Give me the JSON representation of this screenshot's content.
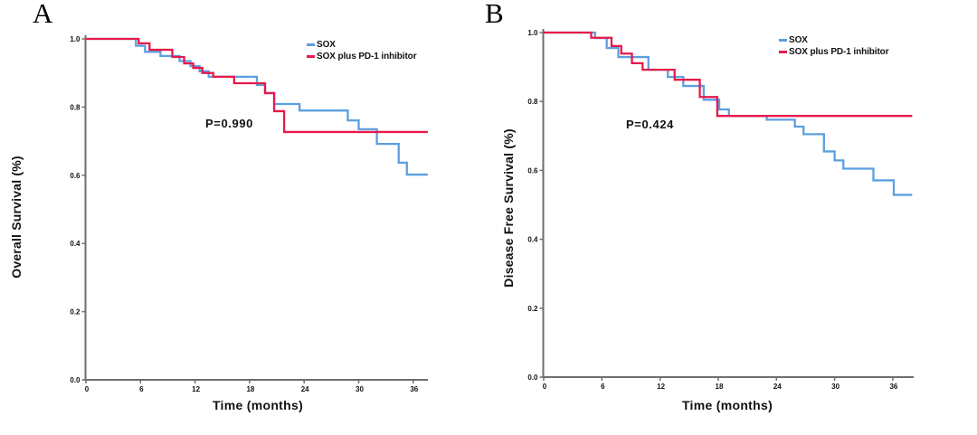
{
  "figure_title": "",
  "colors": {
    "sox": "#5C9FE0",
    "sox_pd1": "#E8194A",
    "axis": "#6E6E6E",
    "text": "#111111",
    "background": "#ffffff"
  },
  "panels": [
    {
      "letter": "A",
      "ylabel": "Overall Survival (%)",
      "xlabel": "Time (months)",
      "p_value": "P=0.990",
      "legend": [
        {
          "label": "SOX",
          "color": "#5C9FE0"
        },
        {
          "label": "SOX plus PD-1 inhibitor",
          "color": "#E8194A"
        }
      ]
    },
    {
      "letter": "B",
      "ylabel": "Disease Free Survival (%)",
      "xlabel": "Time (months)",
      "p_value": "P=0.424",
      "legend": [
        {
          "label": "SOX",
          "color": "#5C9FE0"
        },
        {
          "label": "SOX plus PD-1 inhibitor",
          "color": "#E8194A"
        }
      ]
    }
  ],
  "chart_data": [
    {
      "type": "line",
      "subtype": "kaplan-meier-step",
      "panel": "A",
      "title": "",
      "xlabel": "Time (months)",
      "ylabel": "Overall Survival (%)",
      "xlim": [
        0,
        37.6
      ],
      "ylim": [
        0.0,
        1.0
      ],
      "xticks": [
        0,
        6,
        12,
        18,
        24,
        30,
        36
      ],
      "yticks": [
        0.0,
        0.2,
        0.4,
        0.6,
        0.8,
        1.0
      ],
      "grid": false,
      "legend_position": "top-right",
      "annotation": "P=0.990",
      "series": [
        {
          "name": "SOX",
          "color": "#5C9FE0",
          "start_value": 1.0,
          "events": [
            [
              5.5,
              0.98
            ],
            [
              6.5,
              0.962
            ],
            [
              8.2,
              0.95
            ],
            [
              10.3,
              0.935
            ],
            [
              11.5,
              0.92
            ],
            [
              12.5,
              0.905
            ],
            [
              13.5,
              0.889
            ],
            [
              18.8,
              0.865
            ],
            [
              19.7,
              0.841
            ],
            [
              20.7,
              0.809
            ],
            [
              23.5,
              0.79
            ],
            [
              28.8,
              0.761
            ],
            [
              30.0,
              0.735
            ],
            [
              32.0,
              0.692
            ],
            [
              34.4,
              0.637
            ],
            [
              35.3,
              0.602
            ]
          ]
        },
        {
          "name": "SOX plus PD-1 inhibitor",
          "color": "#E8194A",
          "start_value": 1.0,
          "events": [
            [
              5.8,
              0.987
            ],
            [
              7.0,
              0.968
            ],
            [
              9.5,
              0.947
            ],
            [
              10.8,
              0.928
            ],
            [
              11.8,
              0.915
            ],
            [
              12.8,
              0.9
            ],
            [
              14.0,
              0.889
            ],
            [
              16.3,
              0.87
            ],
            [
              19.7,
              0.841
            ],
            [
              20.7,
              0.788
            ],
            [
              21.8,
              0.727
            ]
          ]
        }
      ]
    },
    {
      "type": "line",
      "subtype": "kaplan-meier-step",
      "panel": "B",
      "title": "",
      "xlabel": "Time (months)",
      "ylabel": "Disease Free Survival (%)",
      "xlim": [
        0,
        38
      ],
      "ylim": [
        0.0,
        1.0
      ],
      "xticks": [
        0,
        6,
        12,
        18,
        24,
        30,
        36
      ],
      "yticks": [
        0.0,
        0.2,
        0.4,
        0.6,
        0.8,
        1.0
      ],
      "grid": false,
      "legend_position": "top-right",
      "annotation": "P=0.424",
      "series": [
        {
          "name": "SOX",
          "color": "#5C9FE0",
          "start_value": 1.0,
          "events": [
            [
              5.3,
              0.984
            ],
            [
              6.5,
              0.955
            ],
            [
              7.7,
              0.929
            ],
            [
              10.8,
              0.892
            ],
            [
              12.8,
              0.871
            ],
            [
              14.4,
              0.845
            ],
            [
              16.5,
              0.805
            ],
            [
              18.1,
              0.777
            ],
            [
              19.1,
              0.758
            ],
            [
              23.0,
              0.747
            ],
            [
              25.9,
              0.727
            ],
            [
              26.8,
              0.705
            ],
            [
              28.9,
              0.655
            ],
            [
              30.0,
              0.629
            ],
            [
              30.9,
              0.605
            ],
            [
              34.0,
              0.571
            ],
            [
              36.1,
              0.529
            ]
          ]
        },
        {
          "name": "SOX plus PD-1 inhibitor",
          "color": "#E8194A",
          "start_value": 1.0,
          "events": [
            [
              4.9,
              0.985
            ],
            [
              7.0,
              0.961
            ],
            [
              8.0,
              0.939
            ],
            [
              9.1,
              0.911
            ],
            [
              10.2,
              0.892
            ],
            [
              13.5,
              0.863
            ],
            [
              16.1,
              0.813
            ],
            [
              17.9,
              0.758
            ]
          ]
        }
      ]
    }
  ]
}
